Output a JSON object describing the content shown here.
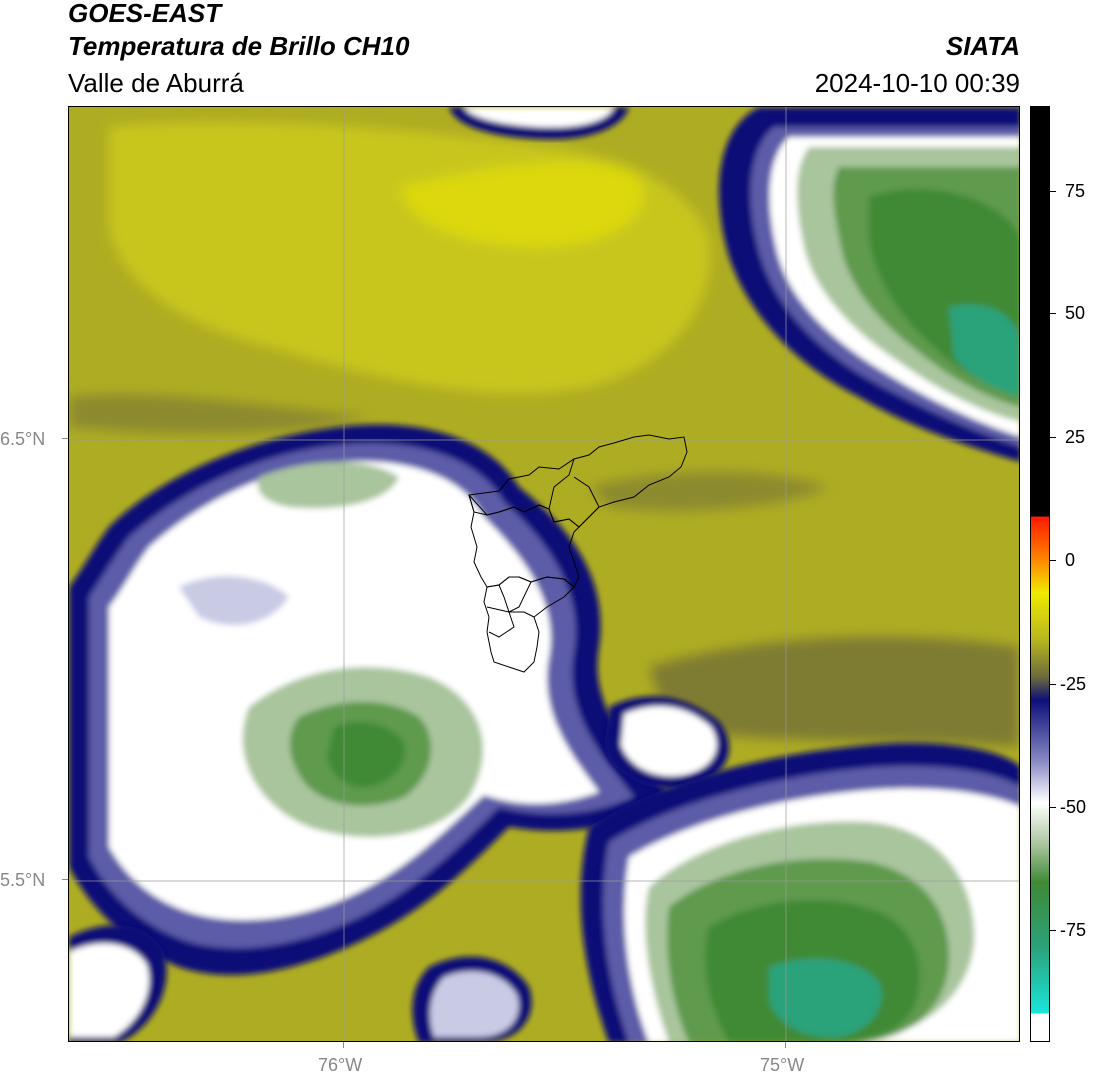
{
  "header": {
    "satellite": "GOES-EAST",
    "product": "Temperatura de Brillo CH10",
    "region": "Valle de Aburrá",
    "organization": "SIATA",
    "datetime": "2024-10-10 00:39"
  },
  "map": {
    "lat_labels": [
      "6.5°N",
      "5.5°N"
    ],
    "lon_labels": [
      "76°W",
      "75°W"
    ]
  },
  "colorbar": {
    "tick_labels": [
      "75",
      "50",
      "25",
      "0",
      "-25",
      "-50",
      "-75"
    ],
    "range": [
      -95,
      92
    ],
    "colors": {
      "cold_cyan": "#1fd6c8",
      "green": "#3f8a36",
      "white": "#ffffff",
      "navy": "#0d0f78",
      "olive": "#b8b71e",
      "yellow": "#f0ea00",
      "orange": "#ff7a00",
      "red": "#ff1a00",
      "black": "#000000"
    }
  }
}
